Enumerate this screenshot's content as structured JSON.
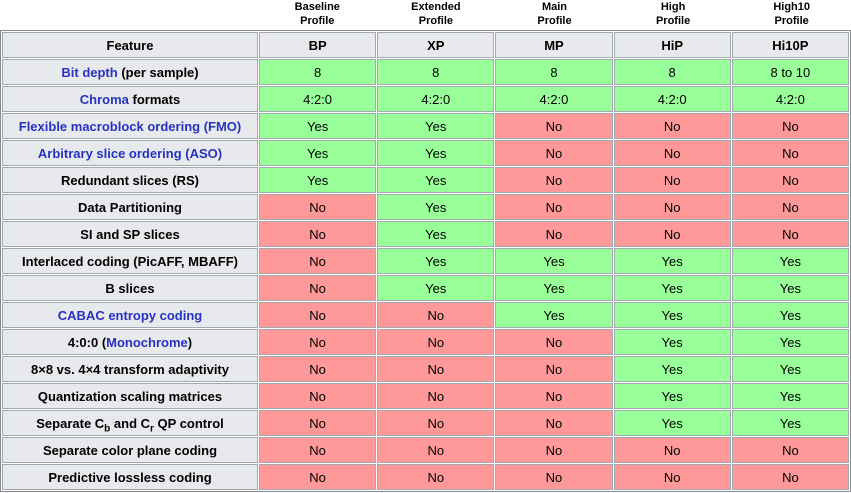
{
  "profile_headers": [
    "Baseline\nProfile",
    "Extended\nProfile",
    "Main\nProfile",
    "High\nProfile",
    "High10\nProfile"
  ],
  "table": {
    "header": [
      "Feature",
      "BP",
      "XP",
      "MP",
      "HiP",
      "Hi10P"
    ],
    "rows": [
      {
        "feature": [
          {
            "text": "Bit depth",
            "link": true
          },
          {
            "text": " (per sample)"
          }
        ],
        "cells": [
          {
            "text": "8",
            "state": "yes"
          },
          {
            "text": "8",
            "state": "yes"
          },
          {
            "text": "8",
            "state": "yes"
          },
          {
            "text": "8",
            "state": "yes"
          },
          {
            "text": "8 to 10",
            "state": "yes"
          }
        ]
      },
      {
        "feature": [
          {
            "text": "Chroma",
            "link": true
          },
          {
            "text": " formats"
          }
        ],
        "cells": [
          {
            "text": "4:2:0",
            "state": "yes"
          },
          {
            "text": "4:2:0",
            "state": "yes"
          },
          {
            "text": "4:2:0",
            "state": "yes"
          },
          {
            "text": "4:2:0",
            "state": "yes"
          },
          {
            "text": "4:2:0",
            "state": "yes"
          }
        ]
      },
      {
        "feature": [
          {
            "text": "Flexible macroblock ordering (FMO)",
            "link": true
          }
        ],
        "cells": [
          {
            "text": "Yes",
            "state": "yes"
          },
          {
            "text": "Yes",
            "state": "yes"
          },
          {
            "text": "No",
            "state": "no"
          },
          {
            "text": "No",
            "state": "no"
          },
          {
            "text": "No",
            "state": "no"
          }
        ]
      },
      {
        "feature": [
          {
            "text": "Arbitrary slice ordering (ASO)",
            "link": true
          }
        ],
        "cells": [
          {
            "text": "Yes",
            "state": "yes"
          },
          {
            "text": "Yes",
            "state": "yes"
          },
          {
            "text": "No",
            "state": "no"
          },
          {
            "text": "No",
            "state": "no"
          },
          {
            "text": "No",
            "state": "no"
          }
        ]
      },
      {
        "feature": [
          {
            "text": "Redundant slices (RS)"
          }
        ],
        "cells": [
          {
            "text": "Yes",
            "state": "yes"
          },
          {
            "text": "Yes",
            "state": "yes"
          },
          {
            "text": "No",
            "state": "no"
          },
          {
            "text": "No",
            "state": "no"
          },
          {
            "text": "No",
            "state": "no"
          }
        ]
      },
      {
        "feature": [
          {
            "text": "Data Partitioning"
          }
        ],
        "cells": [
          {
            "text": "No",
            "state": "no"
          },
          {
            "text": "Yes",
            "state": "yes"
          },
          {
            "text": "No",
            "state": "no"
          },
          {
            "text": "No",
            "state": "no"
          },
          {
            "text": "No",
            "state": "no"
          }
        ]
      },
      {
        "feature": [
          {
            "text": "SI and SP slices"
          }
        ],
        "cells": [
          {
            "text": "No",
            "state": "no"
          },
          {
            "text": "Yes",
            "state": "yes"
          },
          {
            "text": "No",
            "state": "no"
          },
          {
            "text": "No",
            "state": "no"
          },
          {
            "text": "No",
            "state": "no"
          }
        ]
      },
      {
        "feature": [
          {
            "text": "Interlaced coding (PicAFF, MBAFF)"
          }
        ],
        "cells": [
          {
            "text": "No",
            "state": "no"
          },
          {
            "text": "Yes",
            "state": "yes"
          },
          {
            "text": "Yes",
            "state": "yes"
          },
          {
            "text": "Yes",
            "state": "yes"
          },
          {
            "text": "Yes",
            "state": "yes"
          }
        ]
      },
      {
        "feature": [
          {
            "text": "B slices"
          }
        ],
        "cells": [
          {
            "text": "No",
            "state": "no"
          },
          {
            "text": "Yes",
            "state": "yes"
          },
          {
            "text": "Yes",
            "state": "yes"
          },
          {
            "text": "Yes",
            "state": "yes"
          },
          {
            "text": "Yes",
            "state": "yes"
          }
        ]
      },
      {
        "feature": [
          {
            "text": "CABAC entropy coding",
            "link": true
          }
        ],
        "cells": [
          {
            "text": "No",
            "state": "no"
          },
          {
            "text": "No",
            "state": "no"
          },
          {
            "text": "Yes",
            "state": "yes"
          },
          {
            "text": "Yes",
            "state": "yes"
          },
          {
            "text": "Yes",
            "state": "yes"
          }
        ]
      },
      {
        "feature": [
          {
            "text": "4:0:0 ("
          },
          {
            "text": "Monochrome",
            "link": true
          },
          {
            "text": ")"
          }
        ],
        "cells": [
          {
            "text": "No",
            "state": "no"
          },
          {
            "text": "No",
            "state": "no"
          },
          {
            "text": "No",
            "state": "no"
          },
          {
            "text": "Yes",
            "state": "yes"
          },
          {
            "text": "Yes",
            "state": "yes"
          }
        ]
      },
      {
        "feature": [
          {
            "text": "8×8 vs. 4×4 transform adaptivity"
          }
        ],
        "cells": [
          {
            "text": "No",
            "state": "no"
          },
          {
            "text": "No",
            "state": "no"
          },
          {
            "text": "No",
            "state": "no"
          },
          {
            "text": "Yes",
            "state": "yes"
          },
          {
            "text": "Yes",
            "state": "yes"
          }
        ]
      },
      {
        "feature": [
          {
            "text": "Quantization scaling matrices"
          }
        ],
        "cells": [
          {
            "text": "No",
            "state": "no"
          },
          {
            "text": "No",
            "state": "no"
          },
          {
            "text": "No",
            "state": "no"
          },
          {
            "text": "Yes",
            "state": "yes"
          },
          {
            "text": "Yes",
            "state": "yes"
          }
        ]
      },
      {
        "feature": [
          {
            "text": "Separate C"
          },
          {
            "text": "b",
            "sub": true
          },
          {
            "text": " and C"
          },
          {
            "text": "r",
            "sub": true
          },
          {
            "text": " QP control"
          }
        ],
        "cells": [
          {
            "text": "No",
            "state": "no"
          },
          {
            "text": "No",
            "state": "no"
          },
          {
            "text": "No",
            "state": "no"
          },
          {
            "text": "Yes",
            "state": "yes"
          },
          {
            "text": "Yes",
            "state": "yes"
          }
        ]
      },
      {
        "feature": [
          {
            "text": "Separate color plane coding"
          }
        ],
        "cells": [
          {
            "text": "No",
            "state": "no"
          },
          {
            "text": "No",
            "state": "no"
          },
          {
            "text": "No",
            "state": "no"
          },
          {
            "text": "No",
            "state": "no"
          },
          {
            "text": "No",
            "state": "no"
          }
        ]
      },
      {
        "feature": [
          {
            "text": "Predictive lossless coding"
          }
        ],
        "cells": [
          {
            "text": "No",
            "state": "no"
          },
          {
            "text": "No",
            "state": "no"
          },
          {
            "text": "No",
            "state": "no"
          },
          {
            "text": "No",
            "state": "no"
          },
          {
            "text": "No",
            "state": "no"
          }
        ]
      }
    ]
  },
  "colors": {
    "yes_bg": "#99ff99",
    "no_bg": "#ff9999",
    "link": "#2533c2",
    "header_bg": "#e8e9ec",
    "border": "#a2a9b1"
  }
}
